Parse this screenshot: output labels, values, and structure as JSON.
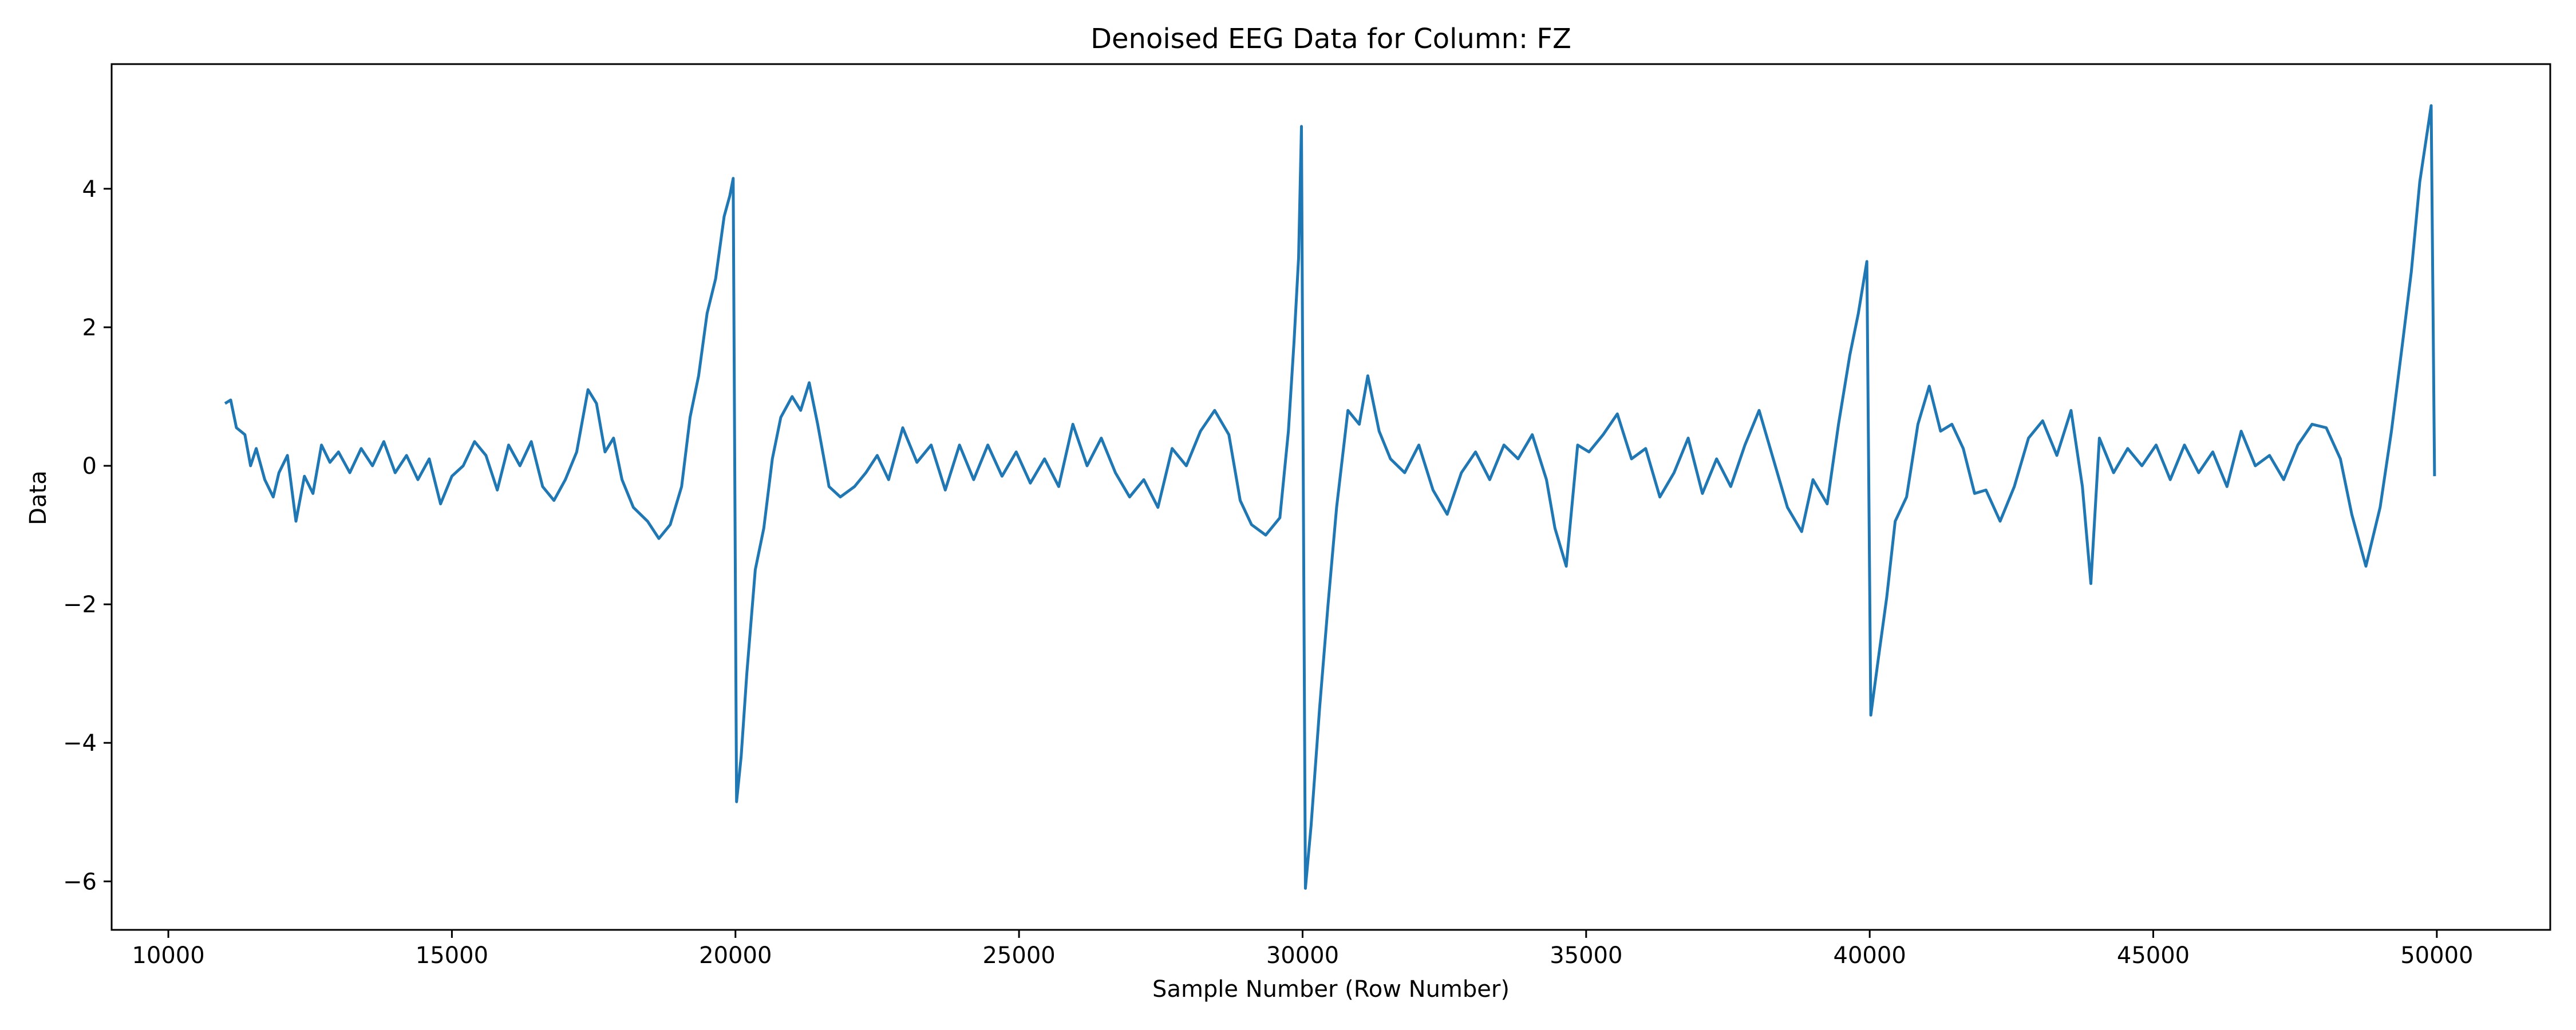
{
  "chart_data": {
    "type": "line",
    "title": "Denoised EEG Data for Column: FZ",
    "xlabel": "Sample Number (Row Number)",
    "ylabel": "Data",
    "xlim": [
      9000,
      52000
    ],
    "ylim": [
      -6.7,
      5.8
    ],
    "xticks": [
      10000,
      15000,
      20000,
      25000,
      30000,
      35000,
      40000,
      45000,
      50000
    ],
    "xtick_labels": [
      "10000",
      "15000",
      "20000",
      "25000",
      "30000",
      "35000",
      "40000",
      "45000",
      "50000"
    ],
    "yticks": [
      -6,
      -4,
      -2,
      0,
      2,
      4
    ],
    "ytick_labels": [
      "−6",
      "−4",
      "−2",
      "0",
      "2",
      "4"
    ],
    "grid": false,
    "series": [
      {
        "color": "#1f77b4",
        "points": [
          [
            11000,
            0.9
          ],
          [
            11100,
            0.95
          ],
          [
            11200,
            0.55
          ],
          [
            11350,
            0.45
          ],
          [
            11450,
            0.0
          ],
          [
            11550,
            0.25
          ],
          [
            11700,
            -0.2
          ],
          [
            11850,
            -0.45
          ],
          [
            11950,
            -0.1
          ],
          [
            12100,
            0.15
          ],
          [
            12250,
            -0.8
          ],
          [
            12400,
            -0.15
          ],
          [
            12550,
            -0.4
          ],
          [
            12700,
            0.3
          ],
          [
            12850,
            0.05
          ],
          [
            13000,
            0.2
          ],
          [
            13200,
            -0.1
          ],
          [
            13400,
            0.25
          ],
          [
            13600,
            0.0
          ],
          [
            13800,
            0.35
          ],
          [
            14000,
            -0.1
          ],
          [
            14200,
            0.15
          ],
          [
            14400,
            -0.2
          ],
          [
            14600,
            0.1
          ],
          [
            14800,
            -0.55
          ],
          [
            15000,
            -0.15
          ],
          [
            15200,
            0.0
          ],
          [
            15400,
            0.35
          ],
          [
            15600,
            0.15
          ],
          [
            15800,
            -0.35
          ],
          [
            16000,
            0.3
          ],
          [
            16200,
            0.0
          ],
          [
            16400,
            0.35
          ],
          [
            16600,
            -0.3
          ],
          [
            16800,
            -0.5
          ],
          [
            17000,
            -0.2
          ],
          [
            17200,
            0.2
          ],
          [
            17400,
            1.1
          ],
          [
            17550,
            0.9
          ],
          [
            17700,
            0.2
          ],
          [
            17850,
            0.4
          ],
          [
            18000,
            -0.2
          ],
          [
            18200,
            -0.6
          ],
          [
            18450,
            -0.8
          ],
          [
            18650,
            -1.05
          ],
          [
            18850,
            -0.85
          ],
          [
            19050,
            -0.3
          ],
          [
            19200,
            0.7
          ],
          [
            19350,
            1.3
          ],
          [
            19500,
            2.2
          ],
          [
            19650,
            2.7
          ],
          [
            19800,
            3.6
          ],
          [
            19900,
            3.9
          ],
          [
            19960,
            4.15
          ],
          [
            20020,
            -4.85
          ],
          [
            20100,
            -4.2
          ],
          [
            20200,
            -3.0
          ],
          [
            20350,
            -1.5
          ],
          [
            20500,
            -0.9
          ],
          [
            20650,
            0.1
          ],
          [
            20800,
            0.7
          ],
          [
            21000,
            1.0
          ],
          [
            21150,
            0.8
          ],
          [
            21300,
            1.2
          ],
          [
            21450,
            0.6
          ],
          [
            21650,
            -0.3
          ],
          [
            21850,
            -0.45
          ],
          [
            22100,
            -0.3
          ],
          [
            22300,
            -0.1
          ],
          [
            22500,
            0.15
          ],
          [
            22700,
            -0.2
          ],
          [
            22950,
            0.55
          ],
          [
            23200,
            0.05
          ],
          [
            23450,
            0.3
          ],
          [
            23700,
            -0.35
          ],
          [
            23950,
            0.3
          ],
          [
            24200,
            -0.2
          ],
          [
            24450,
            0.3
          ],
          [
            24700,
            -0.15
          ],
          [
            24950,
            0.2
          ],
          [
            25200,
            -0.25
          ],
          [
            25450,
            0.1
          ],
          [
            25700,
            -0.3
          ],
          [
            25950,
            0.6
          ],
          [
            26200,
            0.0
          ],
          [
            26450,
            0.4
          ],
          [
            26700,
            -0.1
          ],
          [
            26950,
            -0.45
          ],
          [
            27200,
            -0.2
          ],
          [
            27450,
            -0.6
          ],
          [
            27700,
            0.25
          ],
          [
            27950,
            0.0
          ],
          [
            28200,
            0.5
          ],
          [
            28450,
            0.8
          ],
          [
            28700,
            0.45
          ],
          [
            28900,
            -0.5
          ],
          [
            29100,
            -0.85
          ],
          [
            29350,
            -1.0
          ],
          [
            29600,
            -0.75
          ],
          [
            29750,
            0.5
          ],
          [
            29850,
            1.8
          ],
          [
            29930,
            3.0
          ],
          [
            29980,
            4.9
          ],
          [
            30050,
            -6.1
          ],
          [
            30150,
            -5.2
          ],
          [
            30300,
            -3.5
          ],
          [
            30450,
            -2.0
          ],
          [
            30600,
            -0.6
          ],
          [
            30800,
            0.8
          ],
          [
            31000,
            0.6
          ],
          [
            31150,
            1.3
          ],
          [
            31350,
            0.5
          ],
          [
            31550,
            0.1
          ],
          [
            31800,
            -0.1
          ],
          [
            32050,
            0.3
          ],
          [
            32300,
            -0.35
          ],
          [
            32550,
            -0.7
          ],
          [
            32800,
            -0.1
          ],
          [
            33050,
            0.2
          ],
          [
            33300,
            -0.2
          ],
          [
            33550,
            0.3
          ],
          [
            33800,
            0.1
          ],
          [
            34050,
            0.45
          ],
          [
            34300,
            -0.2
          ],
          [
            34450,
            -0.9
          ],
          [
            34650,
            -1.45
          ],
          [
            34850,
            0.3
          ],
          [
            35050,
            0.2
          ],
          [
            35300,
            0.45
          ],
          [
            35550,
            0.75
          ],
          [
            35800,
            0.1
          ],
          [
            36050,
            0.25
          ],
          [
            36300,
            -0.45
          ],
          [
            36550,
            -0.1
          ],
          [
            36800,
            0.4
          ],
          [
            37050,
            -0.4
          ],
          [
            37300,
            0.1
          ],
          [
            37550,
            -0.3
          ],
          [
            37800,
            0.3
          ],
          [
            38050,
            0.8
          ],
          [
            38300,
            0.1
          ],
          [
            38550,
            -0.6
          ],
          [
            38800,
            -0.95
          ],
          [
            39000,
            -0.2
          ],
          [
            39250,
            -0.55
          ],
          [
            39450,
            0.6
          ],
          [
            39650,
            1.6
          ],
          [
            39800,
            2.2
          ],
          [
            39950,
            2.95
          ],
          [
            40020,
            -3.6
          ],
          [
            40150,
            -2.8
          ],
          [
            40300,
            -1.9
          ],
          [
            40450,
            -0.8
          ],
          [
            40650,
            -0.45
          ],
          [
            40850,
            0.6
          ],
          [
            41050,
            1.15
          ],
          [
            41250,
            0.5
          ],
          [
            41450,
            0.6
          ],
          [
            41650,
            0.25
          ],
          [
            41850,
            -0.4
          ],
          [
            42050,
            -0.35
          ],
          [
            42300,
            -0.8
          ],
          [
            42550,
            -0.3
          ],
          [
            42800,
            0.4
          ],
          [
            43050,
            0.65
          ],
          [
            43300,
            0.15
          ],
          [
            43550,
            0.8
          ],
          [
            43750,
            -0.3
          ],
          [
            43900,
            -1.7
          ],
          [
            44050,
            0.4
          ],
          [
            44300,
            -0.1
          ],
          [
            44550,
            0.25
          ],
          [
            44800,
            0.0
          ],
          [
            45050,
            0.3
          ],
          [
            45300,
            -0.2
          ],
          [
            45550,
            0.3
          ],
          [
            45800,
            -0.1
          ],
          [
            46050,
            0.2
          ],
          [
            46300,
            -0.3
          ],
          [
            46550,
            0.5
          ],
          [
            46800,
            0.0
          ],
          [
            47050,
            0.15
          ],
          [
            47300,
            -0.2
          ],
          [
            47550,
            0.3
          ],
          [
            47800,
            0.6
          ],
          [
            48050,
            0.55
          ],
          [
            48300,
            0.1
          ],
          [
            48500,
            -0.7
          ],
          [
            48750,
            -1.45
          ],
          [
            49000,
            -0.6
          ],
          [
            49200,
            0.5
          ],
          [
            49400,
            1.8
          ],
          [
            49550,
            2.8
          ],
          [
            49700,
            4.1
          ],
          [
            49900,
            5.2
          ],
          [
            49960,
            -0.15
          ]
        ]
      }
    ]
  }
}
